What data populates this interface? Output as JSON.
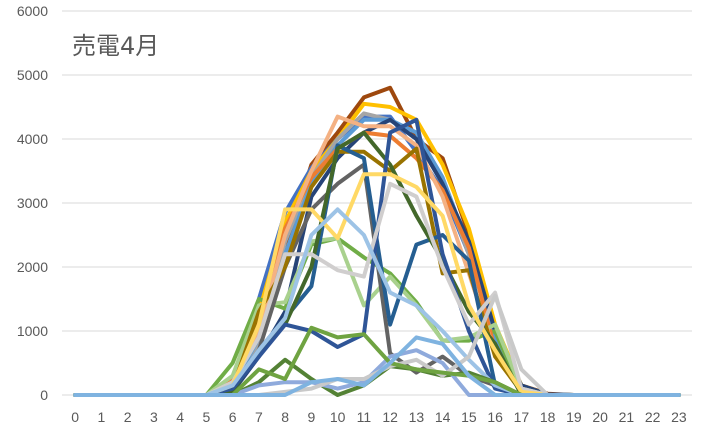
{
  "chart_data": {
    "type": "line",
    "title": "売電4月",
    "xlabel": "",
    "ylabel": "",
    "ylim": [
      0,
      6000
    ],
    "yticks": [
      0,
      1000,
      2000,
      3000,
      4000,
      5000,
      6000
    ],
    "grid": true,
    "legend": "none",
    "x": [
      0,
      1,
      2,
      3,
      4,
      5,
      6,
      7,
      8,
      9,
      10,
      11,
      12,
      13,
      14,
      15,
      16,
      17,
      18,
      19,
      20,
      21,
      22,
      23
    ],
    "series": [
      {
        "color": "#9e480e",
        "values": [
          0,
          0,
          0,
          0,
          0,
          0,
          150,
          950,
          2300,
          3600,
          4100,
          4650,
          4800,
          4000,
          3700,
          2500,
          1000,
          150,
          20,
          0,
          0,
          0,
          0,
          0
        ]
      },
      {
        "color": "#4472c4",
        "values": [
          0,
          0,
          0,
          0,
          0,
          0,
          250,
          1500,
          2850,
          3550,
          4000,
          4350,
          4350,
          3800,
          3200,
          2200,
          850,
          120,
          10,
          0,
          0,
          0,
          0,
          0
        ]
      },
      {
        "color": "#ffc000",
        "values": [
          0,
          0,
          0,
          0,
          0,
          0,
          200,
          1300,
          2700,
          3500,
          4000,
          4550,
          4500,
          4300,
          3600,
          2600,
          1100,
          150,
          10,
          0,
          0,
          0,
          0,
          0
        ]
      },
      {
        "color": "#a5a5a5",
        "values": [
          0,
          0,
          0,
          0,
          0,
          0,
          100,
          800,
          2400,
          3400,
          4000,
          4400,
          4300,
          4000,
          3300,
          2200,
          800,
          100,
          10,
          0,
          0,
          0,
          0,
          0
        ]
      },
      {
        "color": "#5b9bd5",
        "values": [
          0,
          0,
          0,
          0,
          0,
          0,
          120,
          900,
          2200,
          3300,
          3900,
          4300,
          4300,
          4100,
          3400,
          2300,
          900,
          120,
          10,
          0,
          0,
          0,
          0,
          0
        ]
      },
      {
        "color": "#264478",
        "values": [
          0,
          0,
          0,
          0,
          0,
          0,
          50,
          600,
          1300,
          3100,
          3700,
          4100,
          4300,
          4000,
          3300,
          2400,
          1000,
          150,
          10,
          0,
          0,
          0,
          0,
          0
        ]
      },
      {
        "color": "#70ad47",
        "values": [
          0,
          0,
          0,
          0,
          0,
          0,
          500,
          1500,
          1350,
          2350,
          2450,
          2150,
          1900,
          1450,
          850,
          850,
          1000,
          50,
          0,
          0,
          0,
          0,
          0,
          0
        ]
      },
      {
        "color": "#ed7d31",
        "values": [
          0,
          0,
          0,
          0,
          0,
          0,
          250,
          1150,
          2600,
          3400,
          3850,
          4100,
          4050,
          3700,
          3200,
          2300,
          700,
          50,
          0,
          0,
          0,
          0,
          0,
          0
        ]
      },
      {
        "color": "#a9d18e",
        "values": [
          0,
          0,
          0,
          0,
          0,
          0,
          300,
          1400,
          1450,
          2400,
          2450,
          1400,
          1850,
          1400,
          850,
          900,
          1100,
          100,
          0,
          0,
          0,
          0,
          0,
          0
        ]
      },
      {
        "color": "#f4b183",
        "values": [
          0,
          0,
          0,
          0,
          0,
          0,
          150,
          1000,
          2500,
          3500,
          4350,
          4200,
          4200,
          3900,
          3100,
          1900,
          650,
          50,
          0,
          0,
          0,
          0,
          0,
          0
        ]
      },
      {
        "color": "#636363",
        "values": [
          0,
          0,
          0,
          0,
          0,
          0,
          100,
          700,
          2000,
          2900,
          3300,
          3600,
          650,
          350,
          600,
          300,
          150,
          0,
          0,
          0,
          0,
          0,
          0,
          0
        ]
      },
      {
        "color": "#997300",
        "values": [
          0,
          0,
          0,
          0,
          0,
          0,
          100,
          1300,
          2000,
          3250,
          3800,
          3800,
          3500,
          3850,
          1900,
          1950,
          600,
          50,
          0,
          0,
          0,
          0,
          0,
          0
        ]
      },
      {
        "color": "#255e91",
        "values": [
          0,
          0,
          0,
          0,
          0,
          0,
          150,
          700,
          1200,
          1700,
          3900,
          3700,
          1100,
          2350,
          2500,
          2100,
          150,
          0,
          0,
          0,
          0,
          0,
          0,
          0
        ]
      },
      {
        "color": "#43682b",
        "values": [
          0,
          0,
          0,
          0,
          0,
          0,
          50,
          700,
          1100,
          2000,
          3850,
          4100,
          3600,
          2800,
          2100,
          1300,
          800,
          0,
          0,
          0,
          0,
          0,
          0,
          0
        ]
      },
      {
        "color": "#2f5597",
        "values": [
          0,
          0,
          0,
          0,
          0,
          0,
          100,
          600,
          1100,
          1000,
          750,
          950,
          4100,
          4300,
          2200,
          1000,
          100,
          0,
          0,
          0,
          0,
          0,
          0,
          0
        ]
      },
      {
        "color": "#d0cece",
        "values": [
          0,
          0,
          0,
          0,
          0,
          0,
          200,
          900,
          2200,
          2200,
          1950,
          1850,
          3300,
          3100,
          2000,
          1100,
          1600,
          100,
          0,
          0,
          0,
          0,
          0,
          0
        ]
      },
      {
        "color": "#ffd966",
        "values": [
          0,
          0,
          0,
          0,
          0,
          0,
          150,
          1100,
          2900,
          2900,
          2450,
          3450,
          3450,
          3250,
          2800,
          1400,
          700,
          50,
          0,
          0,
          0,
          0,
          0,
          0
        ]
      },
      {
        "color": "#9dc3e6",
        "values": [
          0,
          0,
          0,
          0,
          0,
          0,
          150,
          700,
          1200,
          2500,
          2900,
          2500,
          1600,
          1400,
          1000,
          550,
          150,
          0,
          0,
          0,
          0,
          0,
          0,
          0
        ]
      },
      {
        "color": "#548235",
        "values": [
          0,
          0,
          0,
          0,
          0,
          0,
          0,
          200,
          550,
          250,
          0,
          150,
          450,
          400,
          300,
          350,
          200,
          0,
          0,
          0,
          0,
          0,
          0,
          0
        ]
      },
      {
        "color": "#8faadc",
        "values": [
          0,
          0,
          0,
          0,
          0,
          0,
          0,
          150,
          200,
          200,
          100,
          200,
          600,
          700,
          500,
          0,
          0,
          0,
          0,
          0,
          0,
          0,
          0,
          0
        ]
      },
      {
        "color": "#c9c9c9",
        "values": [
          0,
          0,
          0,
          0,
          0,
          0,
          0,
          0,
          50,
          100,
          250,
          250,
          450,
          550,
          300,
          600,
          1550,
          400,
          0,
          0,
          0,
          0,
          0,
          0
        ]
      },
      {
        "color": "#6fa341",
        "values": [
          0,
          0,
          0,
          0,
          0,
          0,
          0,
          400,
          250,
          1050,
          900,
          950,
          500,
          400,
          350,
          300,
          200,
          0,
          0,
          0,
          0,
          0,
          0,
          0
        ]
      },
      {
        "color": "#7fb3e0",
        "values": [
          0,
          0,
          0,
          0,
          0,
          0,
          0,
          0,
          0,
          200,
          250,
          150,
          500,
          900,
          800,
          300,
          0,
          0,
          0,
          0,
          0,
          0,
          0,
          0
        ]
      }
    ]
  }
}
